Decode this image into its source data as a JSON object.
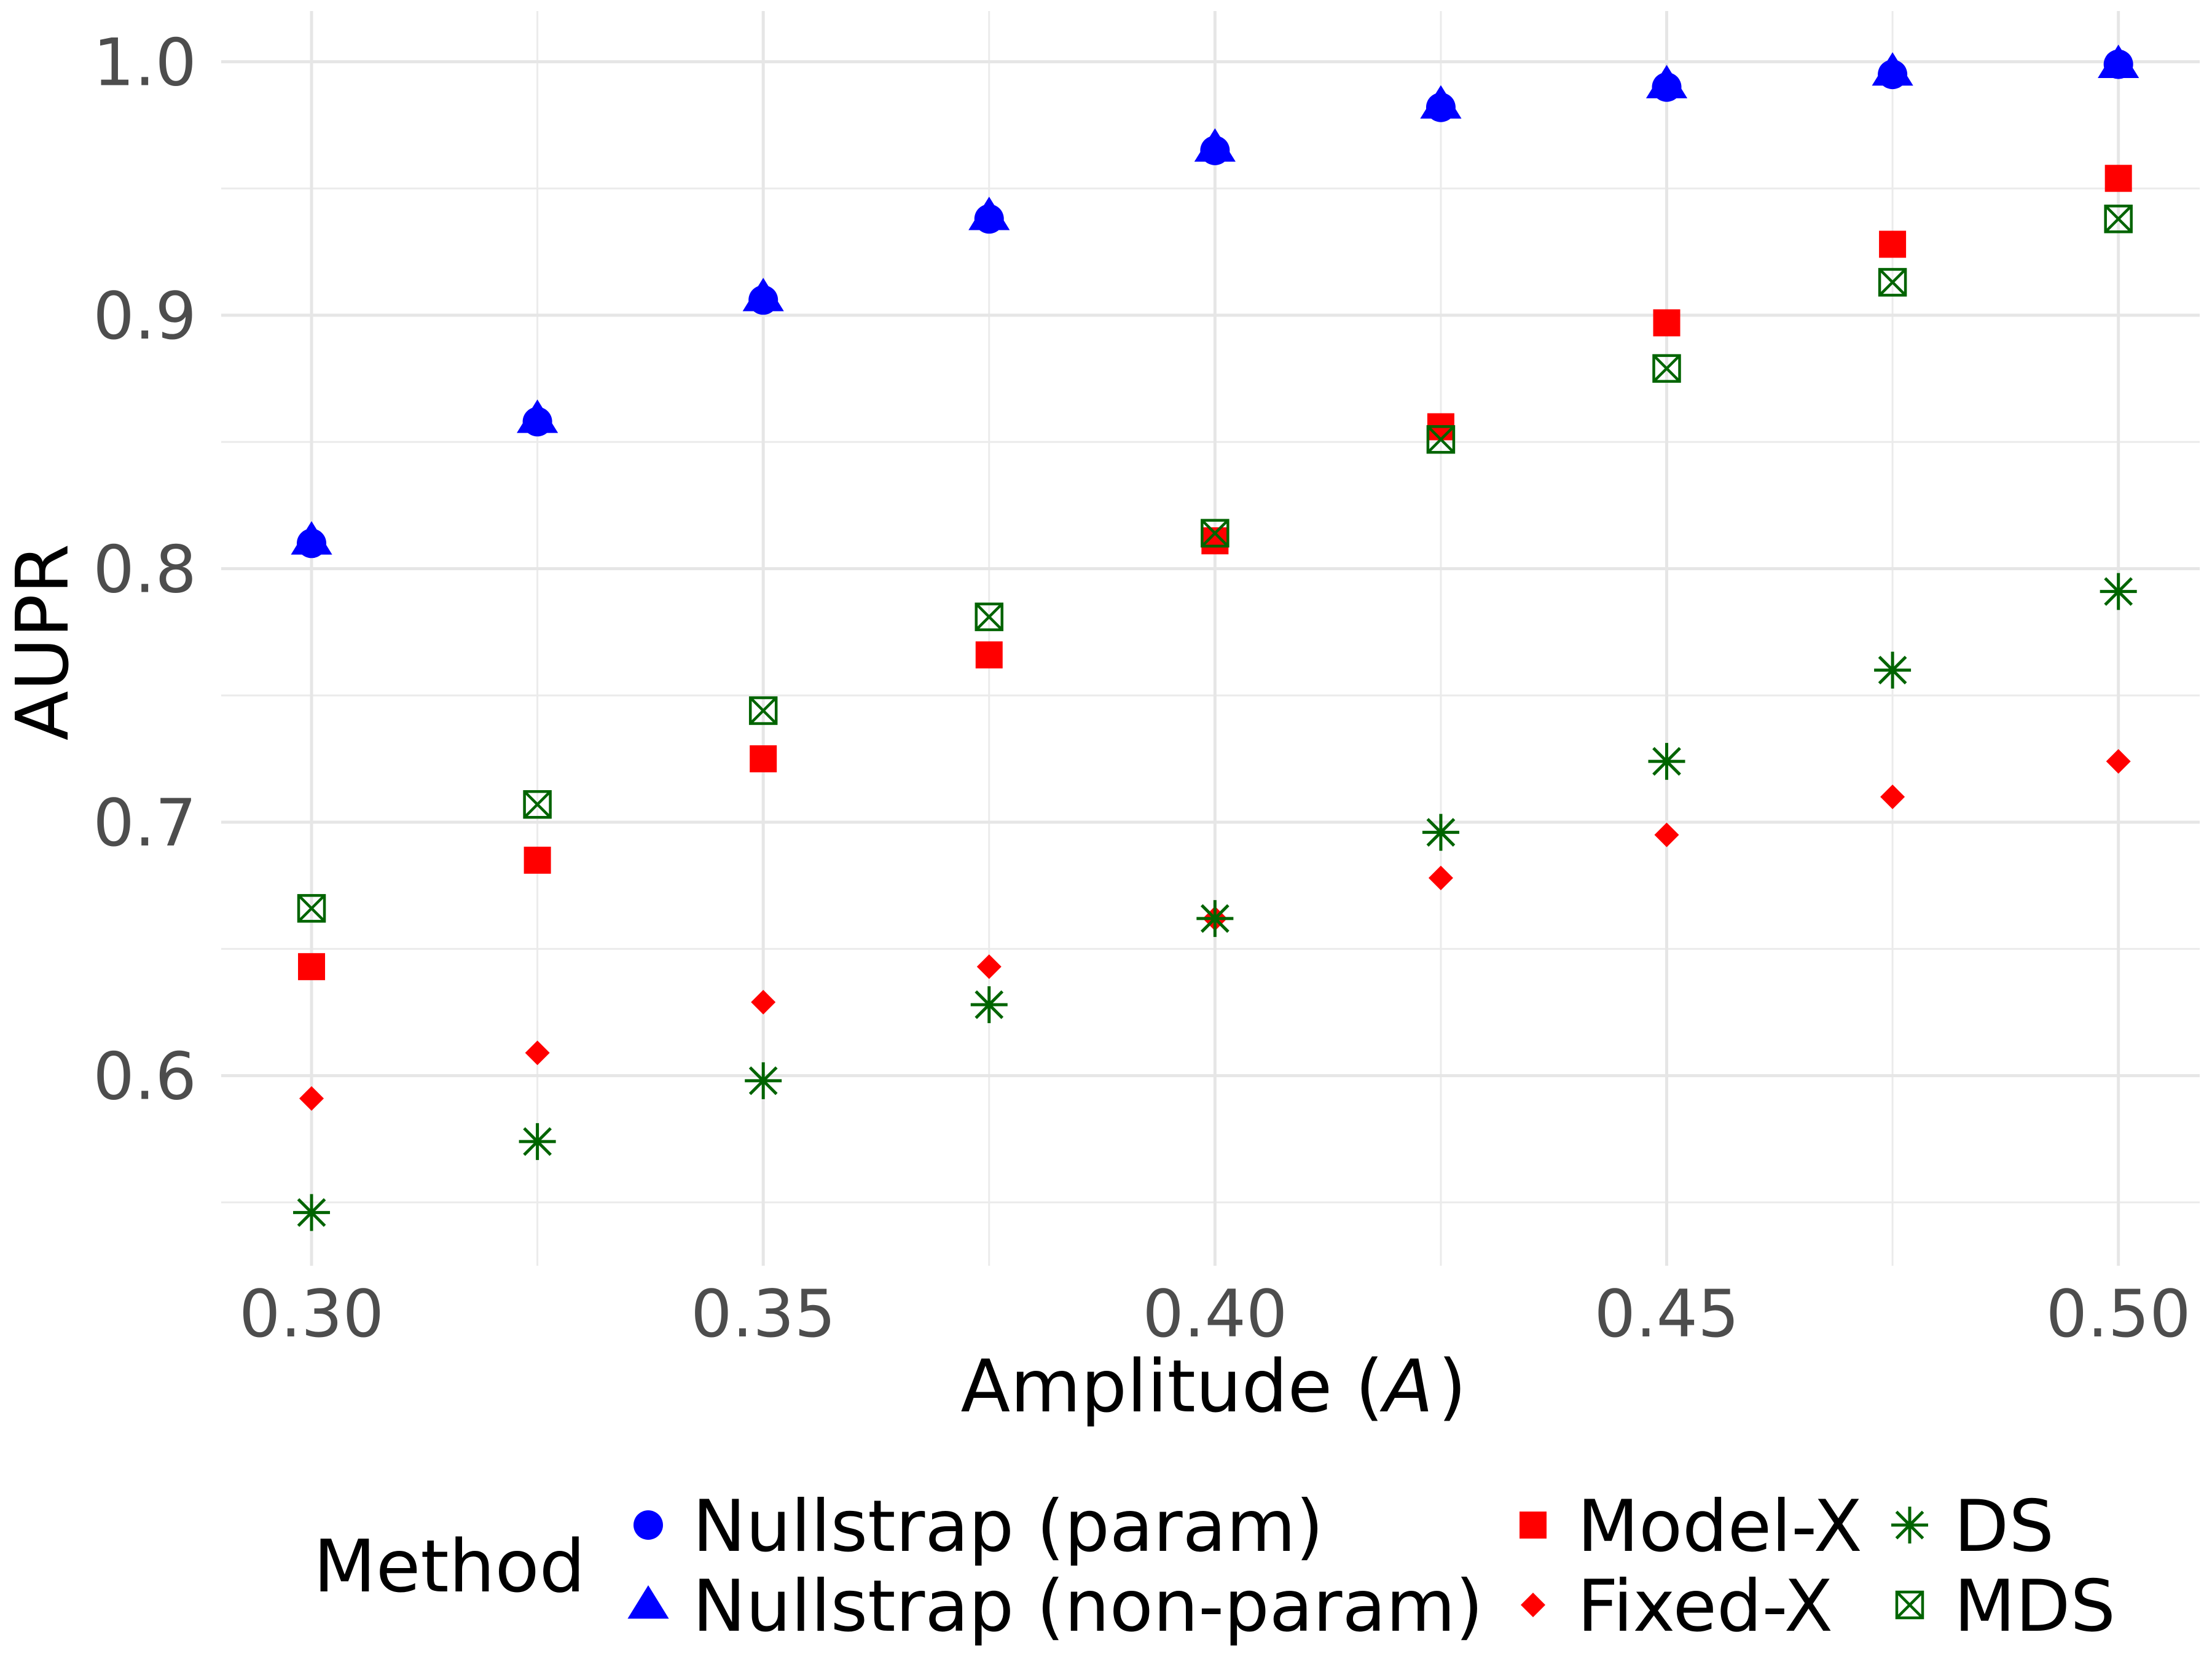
{
  "chart_data": {
    "type": "scatter",
    "title": "",
    "xlabel": "Amplitude (",
    "xlabel_var": "A",
    "xlabel_close": ")",
    "ylabel": "AUPR",
    "xlim": [
      0.29,
      0.509
    ],
    "ylim": [
      0.525,
      1.02
    ],
    "grid": true,
    "x_ticks": [
      0.3,
      0.35,
      0.4,
      0.45,
      0.5
    ],
    "x_tick_labels": [
      "0.30",
      "0.35",
      "0.40",
      "0.45",
      "0.50"
    ],
    "y_ticks": [
      0.6,
      0.7,
      0.8,
      0.9,
      1.0
    ],
    "y_tick_labels": [
      "0.6",
      "0.7",
      "0.8",
      "0.9",
      "1.0"
    ],
    "x": [
      0.3,
      0.325,
      0.35,
      0.375,
      0.4,
      0.425,
      0.45,
      0.475,
      0.5
    ],
    "legend": {
      "title": "Method",
      "position": "bottom"
    },
    "series": [
      {
        "name": "Nullstrap (param)",
        "marker": "circle",
        "color": "#0000ff",
        "values": [
          0.81,
          0.858,
          0.906,
          0.938,
          0.965,
          0.982,
          0.99,
          0.995,
          0.999
        ]
      },
      {
        "name": "Nullstrap (non-param)",
        "marker": "triangle",
        "color": "#0000ff",
        "values": [
          0.811,
          0.859,
          0.907,
          0.939,
          0.966,
          0.983,
          0.991,
          0.996,
          0.999
        ]
      },
      {
        "name": "Model-X",
        "marker": "square",
        "color": "#ff0000",
        "values": [
          0.643,
          0.685,
          0.725,
          0.766,
          0.811,
          0.856,
          0.897,
          0.928,
          0.954
        ]
      },
      {
        "name": "Fixed-X",
        "marker": "diamond",
        "color": "#ff0000",
        "values": [
          0.591,
          0.609,
          0.629,
          0.643,
          0.662,
          0.678,
          0.695,
          0.71,
          0.724
        ]
      },
      {
        "name": "DS",
        "marker": "asterisk",
        "color": "#006400",
        "values": [
          0.546,
          0.574,
          0.598,
          0.628,
          0.662,
          0.696,
          0.724,
          0.76,
          0.791
        ]
      },
      {
        "name": "MDS",
        "marker": "boxcross",
        "color": "#006400",
        "values": [
          0.666,
          0.707,
          0.744,
          0.781,
          0.814,
          0.851,
          0.879,
          0.913,
          0.938
        ]
      }
    ]
  }
}
